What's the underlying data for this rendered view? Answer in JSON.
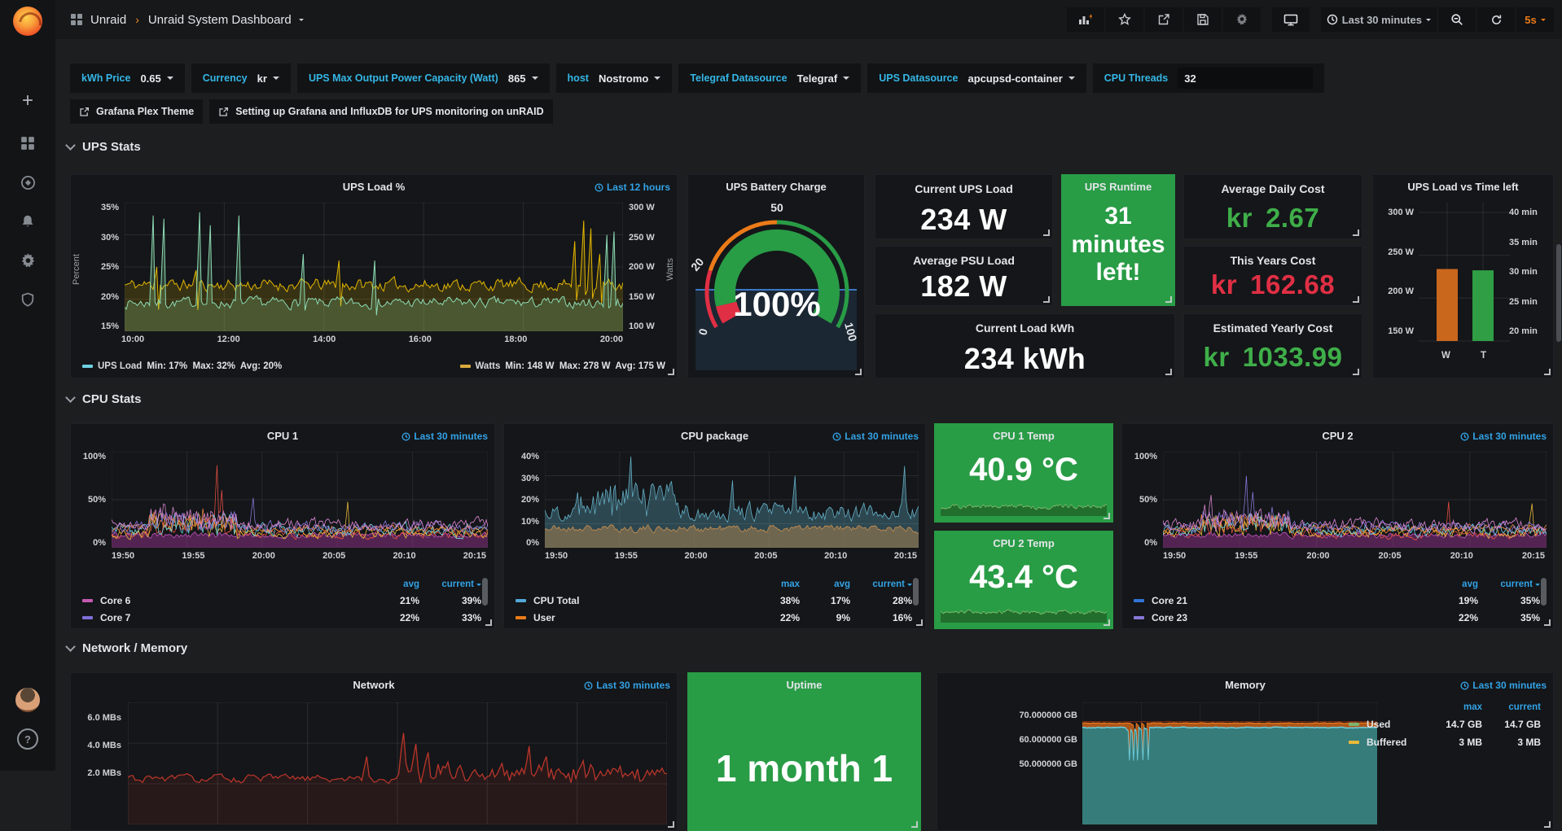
{
  "colors": {
    "accent_blue": "#33a2e5",
    "orange": "#eb7b18",
    "green_bg": "#299c46",
    "green_text": "#3fae49",
    "red_text": "#e02f44"
  },
  "navbar": {
    "breadcrumb_root": "Unraid",
    "breadcrumb_separator": "›",
    "breadcrumb_current": "Unraid System Dashboard",
    "time_range": "Last 30 minutes",
    "refresh_interval": "5s"
  },
  "variables": [
    {
      "label": "kWh Price",
      "value": "0.65"
    },
    {
      "label": "Currency",
      "value": "kr"
    },
    {
      "label": "UPS Max Output Power Capacity (Watt)",
      "value": "865"
    },
    {
      "label": "host",
      "value": "Nostromo"
    },
    {
      "label": "Telegraf Datasource",
      "value": "Telegraf"
    },
    {
      "label": "UPS Datasource",
      "value": "apcupsd-container"
    },
    {
      "label": "CPU Threads",
      "value": "32"
    }
  ],
  "links": [
    {
      "label": "Grafana Plex Theme"
    },
    {
      "label": "Setting up Grafana and InfluxDB for UPS monitoring on unRAID"
    }
  ],
  "sections": {
    "ups": "UPS Stats",
    "cpu": "CPU Stats",
    "network": "Network / Memory"
  },
  "panels": {
    "ups_load": {
      "title": "UPS Load %",
      "time_range": "Last 12 hours",
      "y_left_label": "Percent",
      "y_right_label": "Watts",
      "y_left_ticks": [
        "35%",
        "30%",
        "25%",
        "20%",
        "15%"
      ],
      "y_right_ticks": [
        "300 W",
        "250 W",
        "200 W",
        "150 W",
        "100 W"
      ],
      "x_ticks": [
        "10:00",
        "12:00",
        "14:00",
        "16:00",
        "18:00",
        "20:00"
      ],
      "legend": [
        {
          "name": "UPS Load",
          "stats": "Min: 17%  Max: 32%  Avg: 20%",
          "color": "#6ed0e0"
        },
        {
          "name": "Watts",
          "stats": "Min: 148 W  Max: 278 W  Avg: 175 W",
          "color": "#d9a93d"
        }
      ]
    },
    "battery": {
      "title": "UPS Battery Charge",
      "value": "100%",
      "value_num": 100,
      "min": 0,
      "max": 100,
      "ticks": [
        "0",
        "20",
        "50",
        "100"
      ]
    },
    "stats": {
      "current_ups_load": {
        "title": "Current UPS Load",
        "value": "234 W"
      },
      "average_psu_load": {
        "title": "Average PSU Load",
        "value": "182 W"
      },
      "current_load_kwh": {
        "title": "Current Load kWh",
        "value": "234 kWh"
      },
      "ups_runtime": {
        "title": "UPS Runtime",
        "value": "31 minutes left!"
      },
      "average_daily_cost": {
        "title": "Average Daily Cost",
        "prefix": "kr",
        "value": "2.67"
      },
      "this_years_cost": {
        "title": "This Years Cost",
        "prefix": "kr",
        "value": "162.68"
      },
      "estimated_yearly_cost": {
        "title": "Estimated Yearly Cost",
        "prefix": "kr",
        "value": "1033.99"
      }
    },
    "ups_bars": {
      "title": "UPS Load vs Time left",
      "left_ticks": [
        "300 W",
        "250 W",
        "200 W",
        "150 W"
      ],
      "right_ticks": [
        "40 min",
        "35 min",
        "30 min",
        "25 min",
        "20 min"
      ],
      "bars": [
        {
          "label": "W",
          "value": 234,
          "axis_min": 150,
          "axis_max": 300,
          "color": "#c9671d"
        },
        {
          "label": "T",
          "value": 31,
          "axis_min": 20,
          "axis_max": 40,
          "color": "#2f9e44"
        }
      ]
    },
    "cpu1": {
      "title": "CPU 1",
      "time_range": "Last 30 minutes",
      "y_ticks": [
        "100%",
        "50%",
        "0%"
      ],
      "x_ticks": [
        "19:50",
        "19:55",
        "20:00",
        "20:05",
        "20:10",
        "20:15"
      ],
      "legend_headers": [
        "avg",
        "current"
      ],
      "legend": [
        {
          "name": "Core 6",
          "color": "#c45ab0",
          "avg": "21%",
          "current": "39%"
        },
        {
          "name": "Core 7",
          "color": "#7e6fd9",
          "avg": "22%",
          "current": "33%"
        }
      ]
    },
    "cpu_package": {
      "title": "CPU package",
      "time_range": "Last 30 minutes",
      "y_ticks": [
        "40%",
        "30%",
        "20%",
        "10%",
        "0%"
      ],
      "x_ticks": [
        "19:50",
        "19:55",
        "20:00",
        "20:05",
        "20:10",
        "20:15"
      ],
      "legend_headers": [
        "max",
        "avg",
        "current"
      ],
      "legend": [
        {
          "name": "CPU Total",
          "color": "#53a7d8",
          "max": "38%",
          "avg": "17%",
          "current": "28%"
        },
        {
          "name": "User",
          "color": "#eb7b18",
          "max": "22%",
          "avg": "9%",
          "current": "16%"
        }
      ]
    },
    "cpu1_temp": {
      "title": "CPU 1 Temp",
      "value": "40.9 °C"
    },
    "cpu2_temp": {
      "title": "CPU 2 Temp",
      "value": "43.4 °C"
    },
    "cpu2": {
      "title": "CPU 2",
      "time_range": "Last 30 minutes",
      "y_ticks": [
        "100%",
        "50%",
        "0%"
      ],
      "x_ticks": [
        "19:50",
        "19:55",
        "20:00",
        "20:05",
        "20:10",
        "20:15"
      ],
      "legend_headers": [
        "avg",
        "current"
      ],
      "legend": [
        {
          "name": "Core 21",
          "color": "#3274d9",
          "avg": "19%",
          "current": "35%"
        },
        {
          "name": "Core 23",
          "color": "#8877d9",
          "avg": "22%",
          "current": "35%"
        }
      ]
    },
    "network": {
      "title": "Network",
      "time_range": "Last 30 minutes",
      "y_ticks": [
        "6.0 MBs",
        "4.0 MBs",
        "2.0 MBs"
      ]
    },
    "uptime": {
      "title": "Uptime",
      "value": "1 month 1"
    },
    "memory": {
      "title": "Memory",
      "time_range": "Last 30 minutes",
      "y_ticks": [
        "70.000000 GB",
        "60.000000 GB",
        "50.000000 GB"
      ],
      "legend_headers": [
        "max",
        "current"
      ],
      "legend": [
        {
          "name": "Used",
          "color": "#7eb26d",
          "max": "14.7 GB",
          "current": "14.7 GB"
        },
        {
          "name": "Buffered",
          "color": "#eab839",
          "max": "3 MB",
          "current": "3 MB"
        }
      ]
    }
  }
}
